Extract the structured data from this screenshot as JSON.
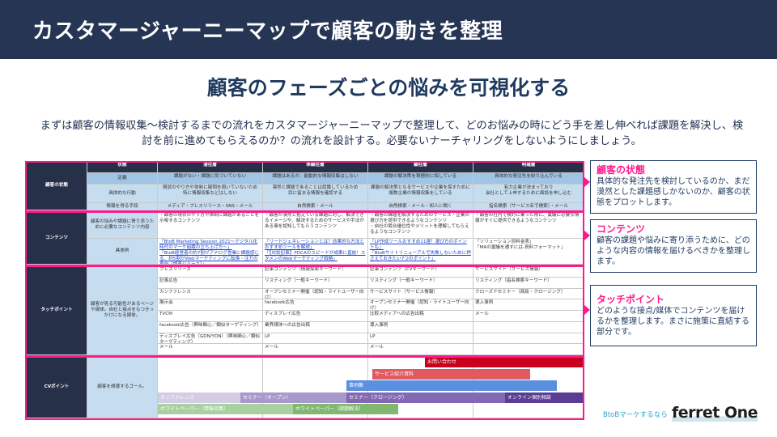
{
  "header": {
    "title": "カスタマージャーニーマップで顧客の動きを整理"
  },
  "subtitle": "顧客のフェーズごとの悩みを可視化する",
  "intro": "まずは顧客の情報収集〜検討するまでの流れをカスタマージャーニーマップで整理して、どのお悩みの時にどう手を差し伸べれば課題を解決し、検討を前に進めてもらえるのか？の流れを設計する。必要ないナーチャリングをしないようにしましょう。",
  "table": {
    "phase_header": "状態",
    "phases": [
      "潜在層",
      "準顕在層",
      "顕在層",
      "明確層"
    ],
    "customer_state": {
      "label": "顧客の状態",
      "rows": [
        {
          "label": "定義",
          "values": [
            "課題がない・課題に気づいていない",
            "課題はあるが、能動的な情報収集はしない",
            "課題の解決策を積極的に探している",
            "具体的な発注先を絞り込んでいる"
          ]
        },
        {
          "label": "具体的な行動",
          "values": [
            "現状のやり方や体制に疑問を抱いていないため\n特に情報収集などはしない",
            "漠然と課題であることは認識しているため\n目に留まる情報を確認する",
            "課題の解決策となるサービスや企業を探すために\n複数企業の情報収集をしている",
            "有力企業が決まっており\n会社として上申するために面談を申し込む"
          ]
        },
        {
          "label": "情報を得る手段",
          "values": [
            "メディア・プレスリリース・SNS・メール",
            "自然検索・メール",
            "自然検索・メール・知人に聞く",
            "指名検索（サービス名で検索）・メール"
          ]
        }
      ]
    },
    "contents": {
      "label": "コンテンツ",
      "rows": [
        {
          "label": "顧客の悩みや課題に寄り添うために必要なコンテンツ内容",
          "values": [
            "・顧客の現状のやり方や体制に課題があることを示唆するコンテンツ",
            "・顧客が漠然と抱えている課題に対し、解決できるイメージや、解決するためのサービスや手法がある事を認知してもらうコンテンツ",
            "・顧客の課題を解決するためのサービス・企業の選び方を提供できるようなコンテンツ\n・自社の競合優位性やメリットを理解してもらえるようなコンテンツ",
            "・顧客の社内で検討に乗った際に、稟議に必要な情報がすぐに提供できるようなコンテンツ"
          ]
        },
        {
          "label": "具体例",
          "values": [
            "「BtoB Marketing Session 2021〜デジタル化時代のマーケ組織の立ち上げ方〜」\n「BtoB経営者の約7割がアナログ営業に課題感じる、約5割がWebマーケティングに転換・注力の意向［調査リリース］」",
            "「リードジェネレーションとは？効果的な方法とおすすめツールを解説」\n「【対談記事】PDCAのスピードが成果に直結！スタメンのWebマーケティング戦略」",
            "「LP作成ツールおすすめ11選！選び方のポイントも」\n「BtoBサイトリニューアルで失敗しないために押さえておきたい7つのポイント」",
            "「ソリューション別料金表」\n「MAの稟議を通すには-資料フォーマット」"
          ]
        }
      ]
    },
    "touchpoints": {
      "label": "タッチポイント",
      "description": "顧客が見る可能性があるページや媒体。自社と接点をもつきっかけになる媒体。",
      "columns": [
        [
          "プレスリリース",
          "記事広告",
          "カンファレンス",
          "展示会",
          "TVCM",
          "facebook広告（興味関心／類似ターゲティング）",
          "ディスプレイ広告（GDN/YDN）（興味関心／類似ターゲティング）",
          "メール"
        ],
        [
          "記事コンテンツ（情報探索キーワード）",
          "リスティング（一般キーワード）",
          "オープンセミナー開催（認知・ライトユーザー向け）",
          "facebook広告",
          "ディスプレイ広告",
          "業界媒体への広告出稿",
          "LP",
          "メール"
        ],
        [
          "記事コンテンツ（CVキーワード）",
          "リスティング（一般キーワード）",
          "サービスサイト（サービス情報）",
          "オープンセミナー開催（認知・ライトユーザー向け）",
          "比較メディアへの広告出稿",
          "導入事例",
          "LP",
          "メール"
        ],
        [
          "サービスサイト（サービス情報）",
          "リスティング（指名検索キーワード）",
          "クローズドセミナー（商談・クロージング）",
          "導入事例",
          "メール",
          "",
          "",
          ""
        ]
      ]
    },
    "cv": {
      "label": "CVポイント",
      "description": "顧客を誘導するゴール。",
      "bars": [
        {
          "label": "お問い合わせ",
          "color": "#c8001e"
        },
        {
          "label": "サービス紹介資料",
          "color": "#e05a60"
        },
        {
          "label": "事例集",
          "color": "#5b8fe0"
        },
        {
          "label": "カンファレンス",
          "color": "#d4cce4"
        },
        {
          "label": "セミナー（オープン）",
          "color": "#a898cc"
        },
        {
          "label": "セミナー（クロージング）",
          "color": "#8468b4"
        },
        {
          "label": "オンライン個別相談",
          "color": "#5a3c94"
        },
        {
          "label": "ホワイトペーパー（情報収集）",
          "color": "#a8d0a0"
        },
        {
          "label": "ホワイトペーパー（課題解決）",
          "color": "#80b870"
        }
      ]
    }
  },
  "callouts": [
    {
      "title": "顧客の状態",
      "body": "具体的な発注先を検討しているのか、まだ漠然とした課題感しかないのか、顧客の状態をプロットします。"
    },
    {
      "title": "コンテンツ",
      "body": "顧客の課題や悩みに寄り添うために、どのような内容の情報を届けるべきかを整理します。"
    },
    {
      "title": "タッチポイント",
      "body": "どのような接点/媒体でコンテンツを届けるかを整理します。まさに施策に直結する部分です。"
    }
  ],
  "logo": {
    "tagline": "BtoBマーケするなら",
    "name": "ferret One"
  },
  "colors": {
    "navy": "#253553",
    "accent": "#ff1a8c"
  }
}
